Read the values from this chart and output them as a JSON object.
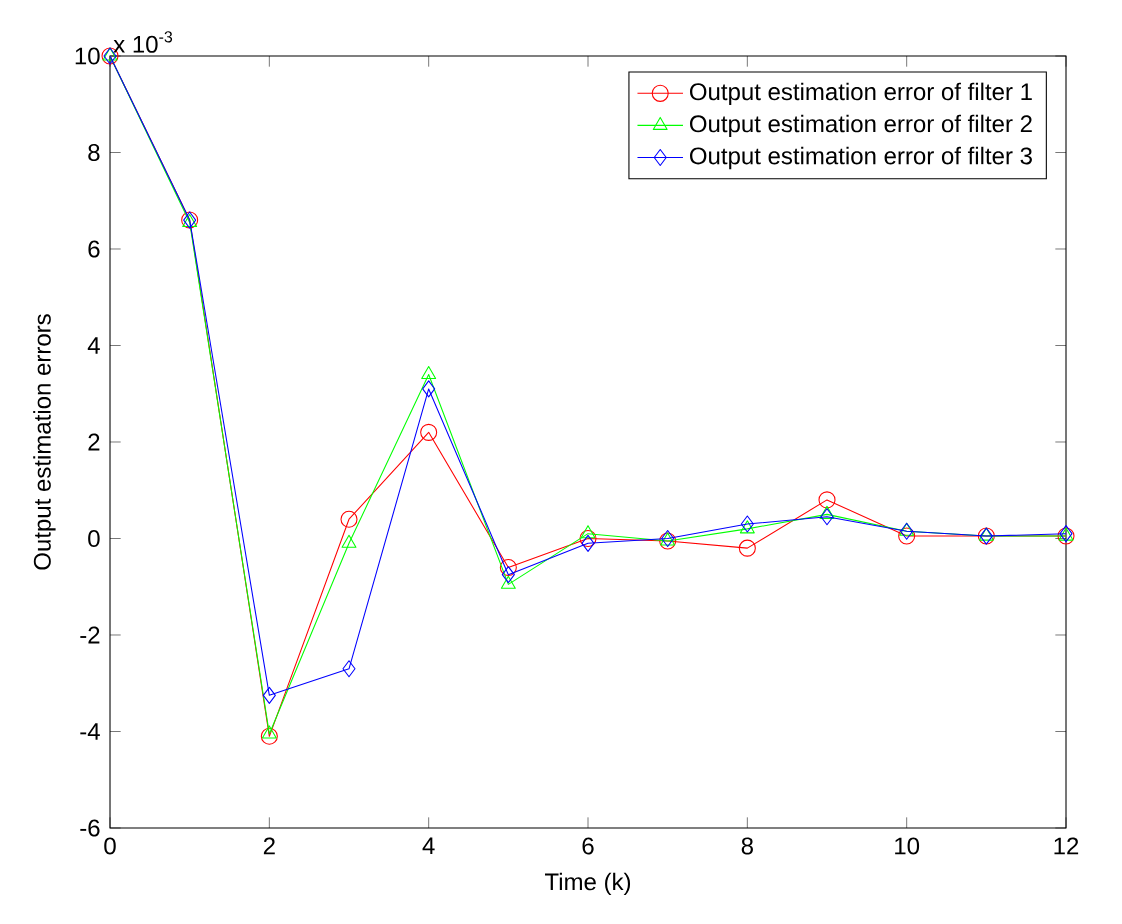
{
  "chart_data": {
    "type": "line",
    "xlabel": "Time (k)",
    "ylabel": "Output estimation errors",
    "annotations": [
      "x 10$^{-3}$"
    ],
    "x": [
      0,
      1,
      2,
      3,
      4,
      5,
      6,
      7,
      8,
      9,
      10,
      11,
      12
    ],
    "series": [
      {
        "name": "Output estimation error of filter 1",
        "color": "#ff0000",
        "marker": "circle",
        "values": [
          10,
          6.6,
          -4.1,
          0.4,
          2.2,
          -0.6,
          0,
          -0.05,
          -0.2,
          0.8,
          0.05,
          0.05,
          0.05
        ]
      },
      {
        "name": "Output estimation error of filter 2",
        "color": "#00ff00",
        "marker": "triangle",
        "values": [
          10,
          6.55,
          -4.05,
          -0.1,
          3.4,
          -0.95,
          0.1,
          -0.05,
          0.2,
          0.5,
          0.15,
          0.05,
          0.05
        ]
      },
      {
        "name": "Output estimation error of filter 3",
        "color": "#0000ff",
        "marker": "diamond",
        "values": [
          10,
          6.6,
          -3.25,
          -2.7,
          3.1,
          -0.75,
          -0.1,
          0,
          0.3,
          0.45,
          0.15,
          0.05,
          0.1
        ]
      }
    ],
    "xlim": [
      0,
      12
    ],
    "ylim": [
      -6,
      10
    ],
    "xticks": [
      0,
      2,
      4,
      6,
      8,
      10,
      12
    ],
    "yticks": [
      -6,
      -4,
      -2,
      0,
      2,
      4,
      6,
      8,
      10
    ],
    "legend": "top right",
    "grid": false,
    "line_style": "solid"
  }
}
